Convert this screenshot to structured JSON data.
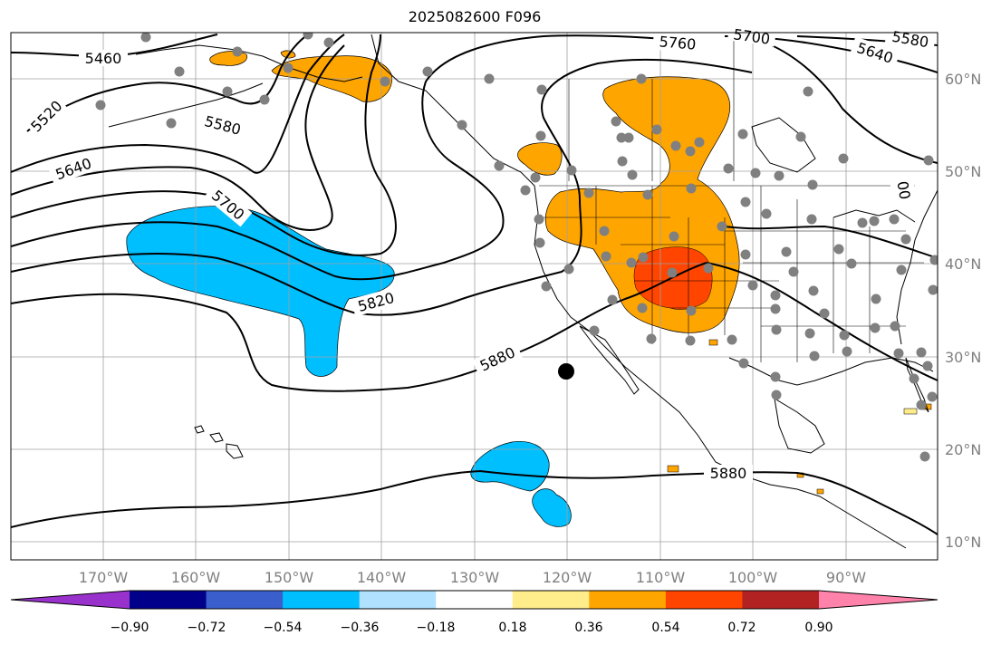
{
  "title": "2025082600 F096",
  "longitude_labels": [
    "170°W",
    "160°W",
    "150°W",
    "140°W",
    "130°W",
    "120°W",
    "110°W",
    "100°W",
    "90°W"
  ],
  "latitude_labels": [
    "60°N",
    "50°N",
    "40°N",
    "30°N",
    "20°N",
    "10°N"
  ],
  "contour_labels": [
    "5460",
    "5520",
    "5580",
    "5640",
    "5700",
    "5760",
    "5820",
    "5880",
    "5880",
    "5700",
    "5640",
    "5580",
    "00"
  ],
  "colorbar": {
    "tick_labels": [
      "−0.90",
      "−0.72",
      "−0.54",
      "−0.36",
      "−0.18",
      "0.18",
      "0.36",
      "0.54",
      "0.72",
      "0.90"
    ],
    "colors": [
      "#9932CC",
      "#00008B",
      "#3A5FCD",
      "#00BFFF",
      "#B0E2FF",
      "#FFFFFF",
      "#FFEC8B",
      "#FFA500",
      "#FF4500",
      "#B22222",
      "#FF82AB"
    ]
  },
  "fill_colors": {
    "negative_strong": "#00BFFF",
    "positive_mid": "#FFA500",
    "positive_high": "#FF4500",
    "positive_low": "#FFEC8B"
  }
}
